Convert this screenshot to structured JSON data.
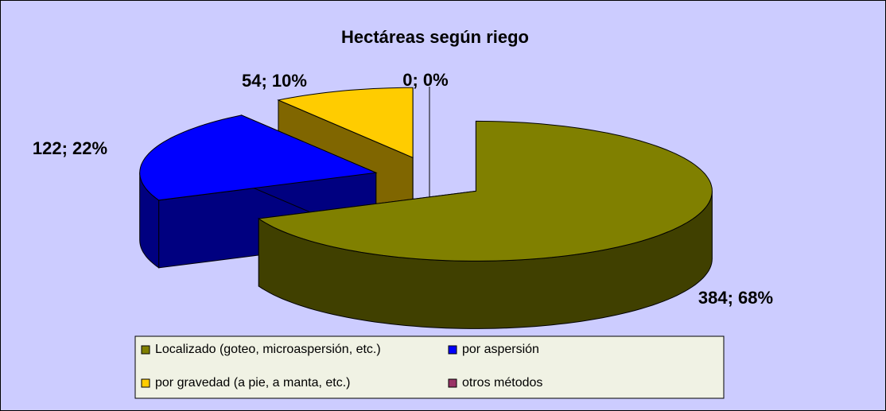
{
  "chart_data": {
    "type": "pie3d",
    "title": "Hectáreas según riego",
    "categories": [
      "Localizado (goteo, microaspersión, etc.)",
      "por aspersión",
      "por gravedad (a pie, a manta, etc.)",
      "otros métodos"
    ],
    "values": [
      384,
      122,
      54,
      0
    ],
    "value_labels": [
      "384; 68%",
      "122; 22%",
      "54; 10%",
      "0; 0%"
    ],
    "colors": [
      "#808000",
      "#0000ff",
      "#ffcc00",
      "#993366"
    ],
    "legend": "bottom"
  }
}
